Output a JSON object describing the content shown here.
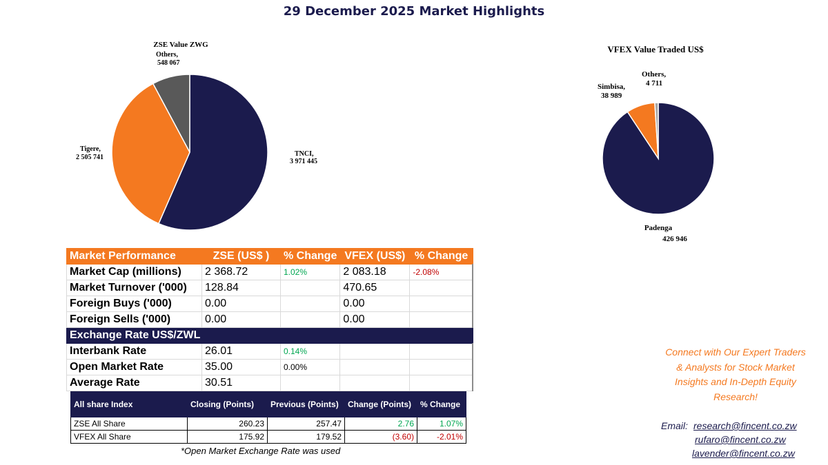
{
  "title": "29 December 2025 Market Highlights",
  "colors": {
    "navy": "#1b1b4d",
    "orange": "#f47920",
    "gray": "#595959",
    "green": "#00a651",
    "red": "#c00000"
  },
  "chart_data": [
    {
      "type": "pie",
      "title": "ZSE Value ZWG",
      "slices": [
        {
          "label": "TNCI,",
          "value_text": "3 971 445",
          "value": 3971445,
          "color": "#1b1b4d"
        },
        {
          "label": "Tigere,",
          "value_text": "2 505 741",
          "value": 2505741,
          "color": "#f47920"
        },
        {
          "label": "Others,",
          "value_text": "548 067",
          "value": 548067,
          "color": "#595959"
        }
      ]
    },
    {
      "type": "pie",
      "title": "VFEX Value Traded US$",
      "slices": [
        {
          "label": "Padenga",
          "value_text": "426 946",
          "value": 426946,
          "color": "#1b1b4d"
        },
        {
          "label": "Simbisa,",
          "value_text": "38 989",
          "value": 38989,
          "color": "#f47920"
        },
        {
          "label": "Others,",
          "value_text": "4 711",
          "value": 4711,
          "color": "#a6a6a6"
        }
      ]
    }
  ],
  "performance": {
    "headers": [
      "Market Performance",
      "ZSE  (US$ )",
      "% Change",
      "VFEX (US$)",
      "% Change"
    ],
    "rows": [
      [
        "Market Cap (millions)",
        "2 368.72",
        "1.02%",
        "2 083.18",
        "-2.08%"
      ],
      [
        "Market Turnover ('000)",
        "128.84",
        "",
        "470.65",
        ""
      ],
      [
        "Foreign Buys ('000)",
        "0.00",
        "",
        "0.00",
        ""
      ],
      [
        "Foreign Sells ('000)",
        "0.00",
        "",
        "0.00",
        ""
      ]
    ],
    "exchange_header": "Exchange Rate US$/ZWL",
    "exchange_rows": [
      [
        "Interbank Rate",
        "26.01",
        "0.14%"
      ],
      [
        "Open Market Rate",
        "35.00",
        "0.00%"
      ],
      [
        "Average Rate",
        "30.51",
        ""
      ]
    ]
  },
  "index": {
    "headers": [
      "All share Index",
      "Closing (Points)",
      "Previous (Points)",
      "Change (Points)",
      "% Change"
    ],
    "rows": [
      [
        "ZSE All Share",
        "260.23",
        "257.47",
        "2.76",
        "1.07%"
      ],
      [
        "VFEX  All Share",
        "175.92",
        "179.52",
        "(3.60)",
        "-2.01%"
      ]
    ],
    "note": "*Open Market  Exchange Rate was used"
  },
  "contact": {
    "connect_lines": [
      "Connect with Our Expert Traders",
      "& Analysts for Stock Market",
      "Insights and In-Depth Equity",
      "Research!"
    ],
    "email_label": "Email:",
    "emails": [
      "research@fincent.co.zw",
      "rufaro@fincent.co.zw",
      "lavender@fincent.co.zw"
    ]
  }
}
